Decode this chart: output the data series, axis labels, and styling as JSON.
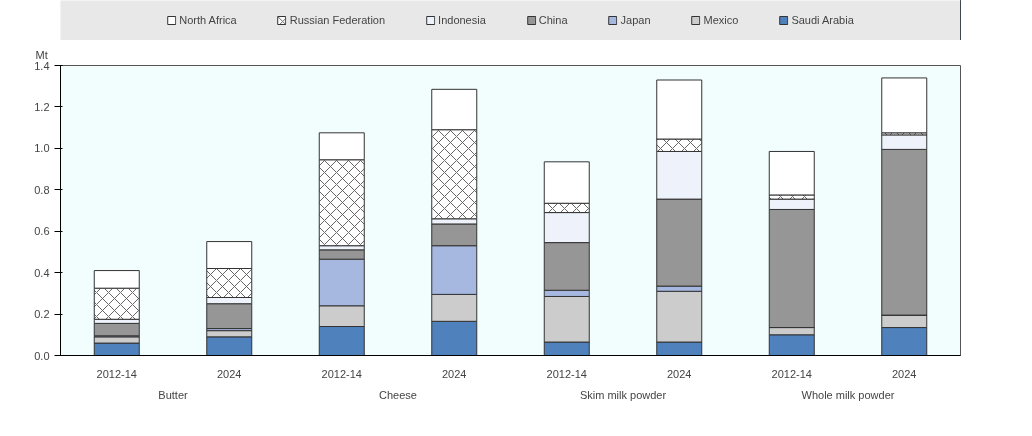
{
  "chart_data": {
    "type": "bar",
    "stacked": true,
    "ylabel": "Mt",
    "categories": [
      "2012-14",
      "2024",
      "2012-14",
      "2024",
      "2012-14",
      "2024",
      "2012-14",
      "2024"
    ],
    "annotations": [
      "Butter",
      "Cheese",
      "Skim milk powder",
      "Whole milk powder"
    ],
    "series": [
      {
        "name": "Saudi Arabia",
        "color": "#4f81bd",
        "values": [
          0.06,
          0.09,
          0.14,
          0.165,
          0.065,
          0.065,
          0.1,
          0.135
        ]
      },
      {
        "name": "Mexico",
        "color": "#cccccc",
        "values": [
          0.03,
          0.03,
          0.1,
          0.13,
          0.22,
          0.245,
          0.035,
          0.06
        ]
      },
      {
        "name": "Japan",
        "color": "#a6b8e0",
        "values": [
          0.005,
          0.01,
          0.225,
          0.235,
          0.03,
          0.025,
          0,
          0
        ]
      },
      {
        "name": "China",
        "color": "#969696",
        "values": [
          0.06,
          0.12,
          0.045,
          0.105,
          0.23,
          0.42,
          0.57,
          0.8
        ]
      },
      {
        "name": "Indonesia",
        "color": "#eef2fa",
        "values": [
          0.02,
          0.03,
          0.02,
          0.025,
          0.145,
          0.23,
          0.05,
          0.07
        ]
      },
      {
        "name": "Russian Federation",
        "color": "#ffffff",
        "values": [
          0.15,
          0.14,
          0.415,
          0.43,
          0.045,
          0.06,
          0.02,
          0.01
        ]
      },
      {
        "name": "North Africa",
        "color": "#ffffff",
        "values": [
          0.085,
          0.13,
          0.13,
          0.195,
          0.2,
          0.285,
          0.21,
          0.265
        ]
      }
    ],
    "ylim": [
      0,
      1.4
    ],
    "yticks": [
      {
        "value": 0,
        "label": "0.0"
      },
      {
        "value": 0.2,
        "label": "0.2"
      },
      {
        "value": 0.4,
        "label": "0.4"
      },
      {
        "value": 0.6,
        "label": "0.6"
      },
      {
        "value": 0.8,
        "label": "0.8"
      },
      {
        "value": 1.0,
        "label": "1.0"
      },
      {
        "value": 1.2,
        "label": "1.2"
      },
      {
        "value": 1.4,
        "label": "1.4"
      }
    ],
    "grid": false,
    "legend": "top"
  }
}
